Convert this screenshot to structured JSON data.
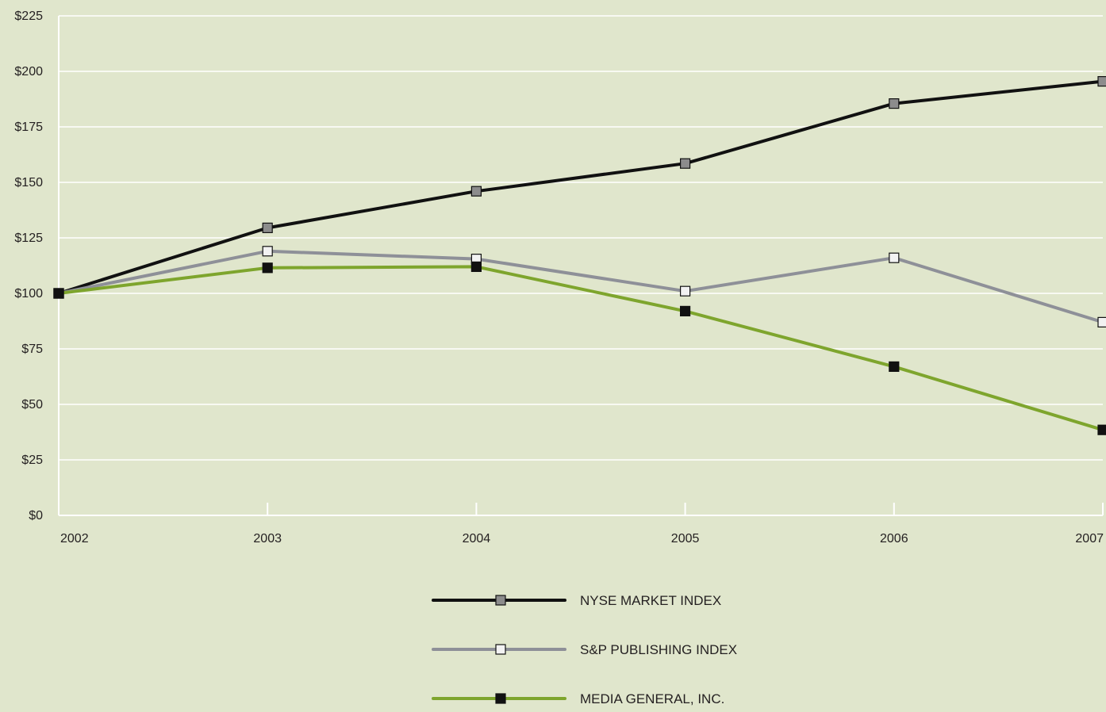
{
  "chart_data": {
    "type": "line",
    "title": "",
    "xlabel": "",
    "ylabel": "",
    "categories": [
      "2002",
      "2003",
      "2004",
      "2005",
      "2006",
      "2007"
    ],
    "y_ticks": [
      "$0",
      "$25",
      "$50",
      "$75",
      "$100",
      "$125",
      "$150",
      "$175",
      "$200",
      "$225"
    ],
    "ylim": [
      0,
      225
    ],
    "y_tick_step": 25,
    "grid": "horizontal",
    "legend_position": "bottom-center",
    "background_color": "#e0e6cc",
    "grid_color": "#ffffff",
    "series": [
      {
        "name": "NYSE MARKET INDEX",
        "line_color": "#111111",
        "marker_fill": "#8c8c8c",
        "marker_shape": "square",
        "values": [
          100,
          129.5,
          146,
          158.5,
          185.5,
          195.5
        ]
      },
      {
        "name": "S&P PUBLISHING INDEX",
        "line_color": "#8e9098",
        "marker_fill": "#f2f2f2",
        "marker_shape": "square",
        "values": [
          100,
          119,
          115.5,
          101,
          116,
          87
        ]
      },
      {
        "name": "MEDIA GENERAL, INC.",
        "line_color": "#7ea52d",
        "marker_fill": "#111111",
        "marker_shape": "square",
        "values": [
          100,
          111.5,
          112,
          92,
          67,
          38.5
        ]
      }
    ]
  }
}
